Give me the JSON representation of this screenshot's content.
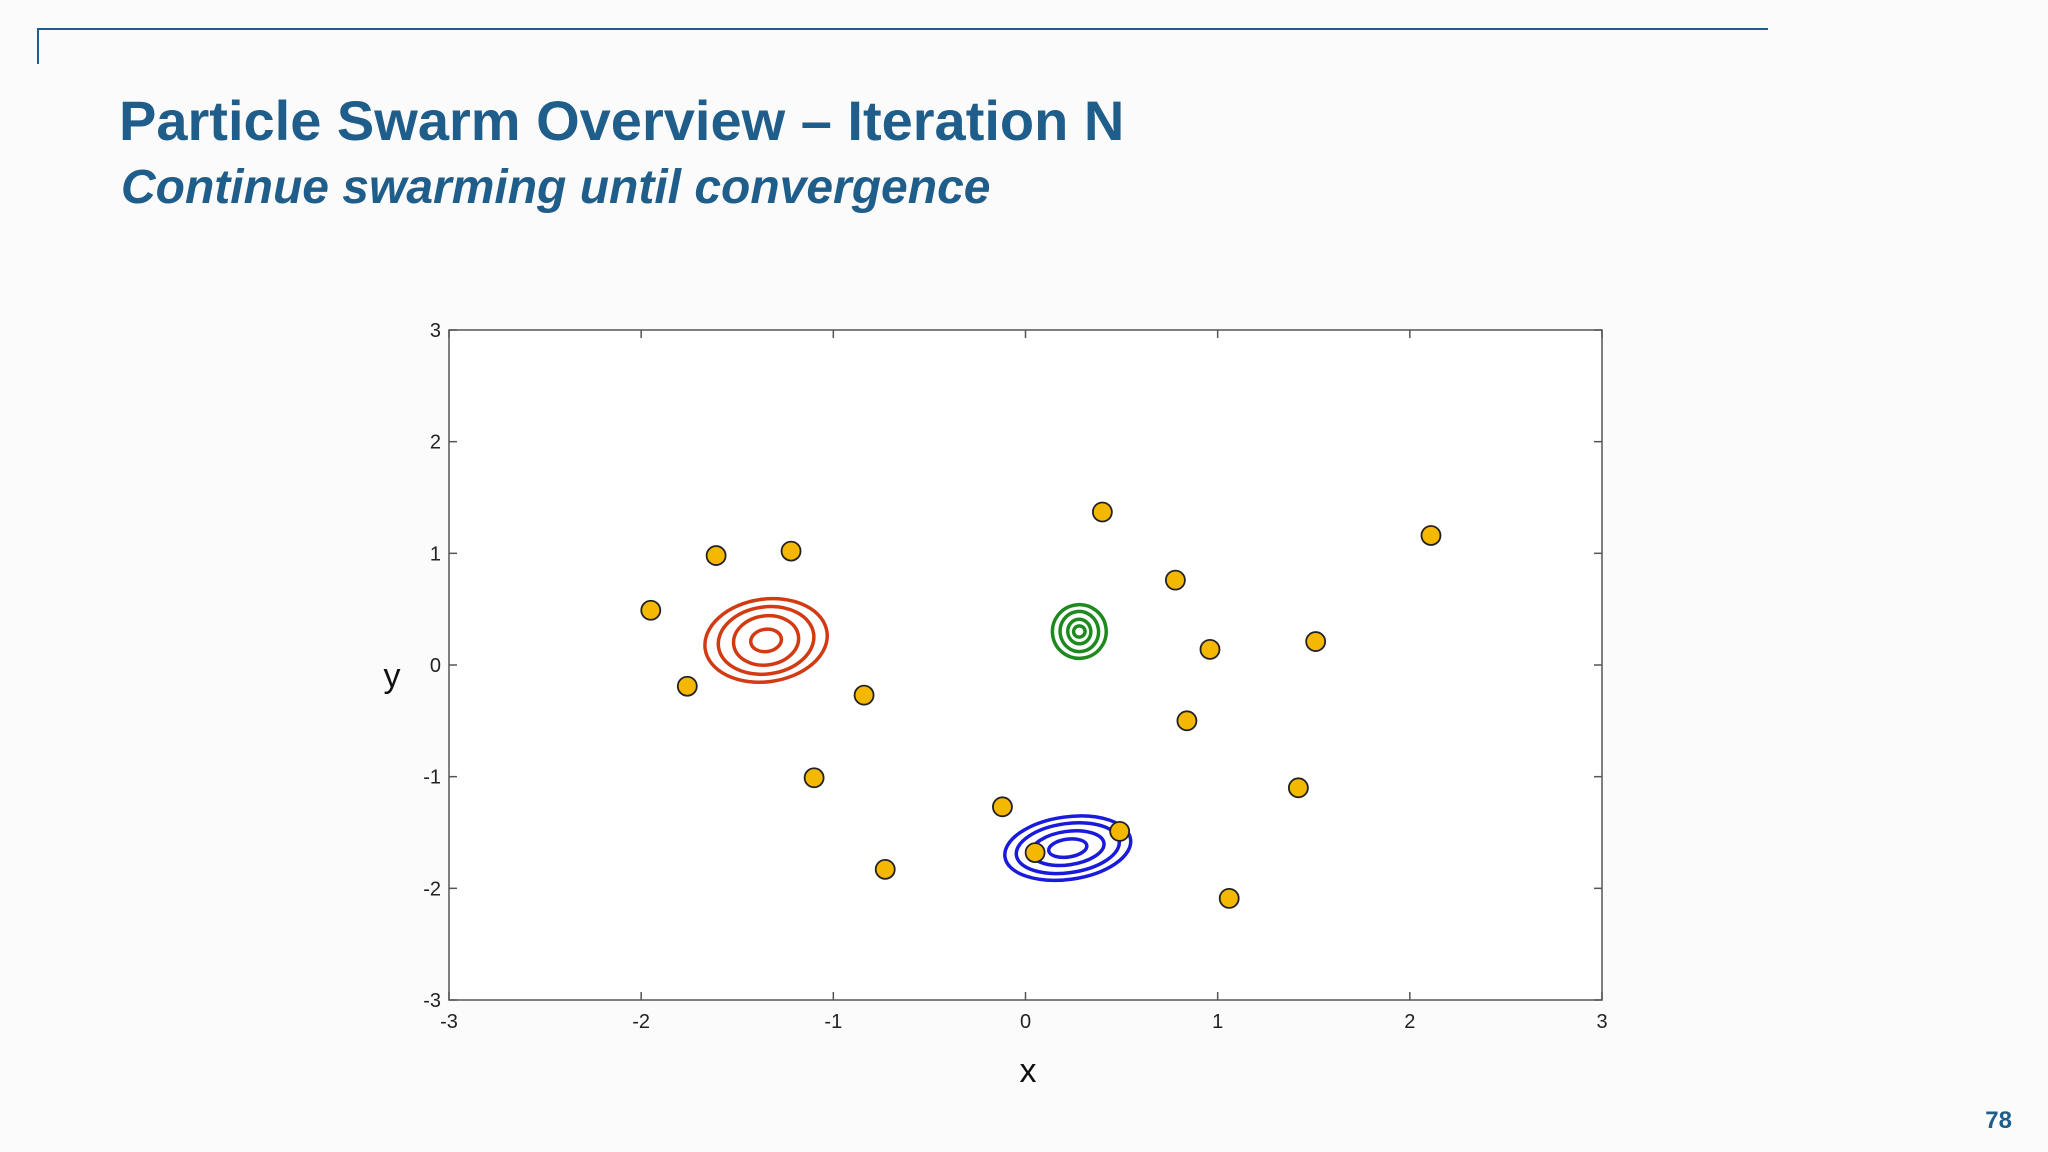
{
  "slide": {
    "title": "Particle Swarm Overview – Iteration N",
    "subtitle": "Continue swarming until convergence",
    "page_number": "78",
    "accent_color": "#1f5d8a"
  },
  "chart_data": {
    "type": "scatter",
    "xlabel": "x",
    "ylabel": "y",
    "xlim": [
      -3,
      3
    ],
    "ylim": [
      -3,
      3
    ],
    "xticks": [
      -3,
      -2,
      -1,
      0,
      1,
      2,
      3
    ],
    "yticks": [
      -3,
      -2,
      -1,
      0,
      1,
      2,
      3
    ],
    "grid": false,
    "particles": {
      "color": "#f5b800",
      "points": [
        {
          "x": -1.61,
          "y": 0.98
        },
        {
          "x": -1.22,
          "y": 1.02
        },
        {
          "x": -1.95,
          "y": 0.49
        },
        {
          "x": -1.76,
          "y": -0.19
        },
        {
          "x": -0.84,
          "y": -0.27
        },
        {
          "x": -1.1,
          "y": -1.01
        },
        {
          "x": -0.73,
          "y": -1.83
        },
        {
          "x": 0.4,
          "y": 1.37
        },
        {
          "x": 0.78,
          "y": 0.76
        },
        {
          "x": 0.96,
          "y": 0.14
        },
        {
          "x": 1.51,
          "y": 0.21
        },
        {
          "x": 0.84,
          "y": -0.5
        },
        {
          "x": 2.11,
          "y": 1.16
        },
        {
          "x": 1.42,
          "y": -1.1
        },
        {
          "x": -0.12,
          "y": -1.27
        },
        {
          "x": 0.49,
          "y": -1.49
        },
        {
          "x": 0.05,
          "y": -1.68
        },
        {
          "x": 1.06,
          "y": -2.09
        }
      ]
    },
    "contours": [
      {
        "color": "#d23b12",
        "center": [
          -1.35,
          0.22
        ],
        "radii": [
          [
            0.32,
            0.37
          ],
          [
            0.25,
            0.3
          ],
          [
            0.17,
            0.22
          ],
          [
            0.08,
            0.1
          ]
        ]
      },
      {
        "color": "#1e8a1e",
        "center": [
          0.28,
          0.3
        ],
        "radii": [
          [
            0.14,
            0.24
          ],
          [
            0.1,
            0.18
          ],
          [
            0.06,
            0.11
          ],
          [
            0.03,
            0.05
          ]
        ]
      },
      {
        "color": "#1a1adb",
        "center": [
          0.22,
          -1.64
        ],
        "radii": [
          [
            0.33,
            0.28
          ],
          [
            0.27,
            0.22
          ],
          [
            0.19,
            0.15
          ],
          [
            0.1,
            0.08
          ]
        ]
      }
    ]
  }
}
